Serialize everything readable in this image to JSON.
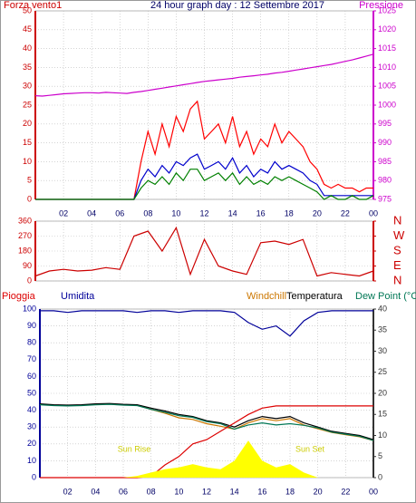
{
  "chart_data": [
    {
      "type": "line",
      "title": "24 hour graph day : 12 Settembre 2017",
      "ylabel": "Forza vento1",
      "y2label": "Pressione",
      "ytick_color": "#cc0000",
      "y2tick_color": "#cc00cc",
      "grid": true,
      "xlim": [
        0,
        24
      ],
      "ylim": [
        0,
        50
      ],
      "y2lim": [
        975,
        1025
      ],
      "xticks": [
        {
          "value": 2,
          "label": "02"
        },
        {
          "value": 4,
          "label": "04"
        },
        {
          "value": 6,
          "label": "06"
        },
        {
          "value": 8,
          "label": "08"
        },
        10,
        12,
        14,
        16,
        18,
        20,
        22,
        {
          "value": 24,
          "label": "00"
        }
      ],
      "yticks": [
        0,
        5,
        10,
        15,
        20,
        25,
        30,
        35,
        40,
        45,
        50
      ],
      "y2ticks": [
        975,
        980,
        985,
        990,
        995,
        1000,
        1005,
        1010,
        1015,
        1020,
        1025
      ],
      "x": [
        0,
        0.5,
        1,
        1.5,
        2,
        2.5,
        3,
        3.5,
        4,
        4.5,
        5,
        5.5,
        6,
        6.5,
        7,
        7.5,
        8,
        8.5,
        9,
        9.5,
        10,
        10.5,
        11,
        11.5,
        12,
        12.5,
        13,
        13.5,
        14,
        14.5,
        15,
        15.5,
        16,
        16.5,
        17,
        17.5,
        18,
        18.5,
        19,
        19.5,
        20,
        20.5,
        21,
        21.5,
        22,
        22.5,
        23,
        23.5,
        24
      ],
      "series": [
        {
          "color": "#ff0000",
          "values": [
            0,
            0,
            0,
            0,
            0,
            0,
            0,
            0,
            0,
            0,
            0,
            0,
            0,
            0,
            0,
            10,
            18,
            12,
            20,
            14,
            22,
            18,
            24,
            26,
            16,
            18,
            20,
            15,
            22,
            14,
            18,
            12,
            16,
            14,
            20,
            15,
            18,
            16,
            14,
            10,
            8,
            4,
            3,
            4,
            3,
            3,
            2,
            3,
            3
          ]
        },
        {
          "color": "#0000cc",
          "values": [
            0,
            0,
            0,
            0,
            0,
            0,
            0,
            0,
            0,
            0,
            0,
            0,
            0,
            0,
            0,
            5,
            8,
            6,
            9,
            7,
            10,
            9,
            11,
            12,
            8,
            9,
            10,
            8,
            11,
            7,
            9,
            6,
            8,
            7,
            10,
            8,
            9,
            8,
            7,
            5,
            4,
            1,
            1,
            1,
            1,
            1,
            1,
            1,
            1
          ]
        },
        {
          "color": "#008000",
          "values": [
            0,
            0,
            0,
            0,
            0,
            0,
            0,
            0,
            0,
            0,
            0,
            0,
            0,
            0,
            0,
            3,
            5,
            4,
            6,
            4,
            7,
            5,
            8,
            8,
            5,
            6,
            7,
            5,
            7,
            4,
            6,
            4,
            5,
            4,
            6,
            5,
            6,
            5,
            4,
            3,
            2,
            0,
            1,
            0,
            0,
            1,
            0,
            0,
            1
          ]
        },
        {
          "color": "#cc00cc",
          "axis": "y2",
          "values": [
            1002.5,
            1002.4,
            1002.6,
            1002.8,
            1003.0,
            1003.1,
            1003.2,
            1003.3,
            1003.3,
            1003.2,
            1003.4,
            1003.3,
            1003.2,
            1003.1,
            1003.4,
            1003.6,
            1003.9,
            1004.2,
            1004.5,
            1004.8,
            1005.1,
            1005.4,
            1005.7,
            1006.0,
            1006.3,
            1006.5,
            1006.7,
            1006.9,
            1007.1,
            1007.4,
            1007.6,
            1007.8,
            1008.0,
            1008.2,
            1008.5,
            1008.7,
            1009.0,
            1009.3,
            1009.6,
            1009.9,
            1010.2,
            1010.5,
            1010.8,
            1011.2,
            1011.6,
            1012.0,
            1012.5,
            1013.0,
            1013.5
          ]
        }
      ]
    },
    {
      "type": "line",
      "ytick_color": "#cc0000",
      "y2tick_color": "#cc0000",
      "grid": true,
      "xlim": [
        0,
        24
      ],
      "ylim": [
        0,
        360
      ],
      "y2lim": [
        0,
        360
      ],
      "xticks": [
        {
          "value": 2,
          "label": "02"
        },
        {
          "value": 4,
          "label": "04"
        },
        {
          "value": 6,
          "label": "06"
        },
        {
          "value": 8,
          "label": "08"
        },
        10,
        12,
        14,
        16,
        18,
        20,
        22,
        {
          "value": 24,
          "label": "00"
        }
      ],
      "yticks": [
        0,
        90,
        180,
        270,
        360
      ],
      "y2ticks": [
        {
          "value": 0,
          "label": "N"
        },
        {
          "value": 90,
          "label": "E"
        },
        {
          "value": 180,
          "label": "S"
        },
        {
          "value": 270,
          "label": "W"
        },
        {
          "value": 360,
          "label": "N"
        }
      ],
      "x": [
        0,
        1,
        2,
        3,
        4,
        5,
        6,
        7,
        8,
        9,
        10,
        11,
        12,
        13,
        14,
        15,
        16,
        17,
        18,
        19,
        20,
        21,
        22,
        23,
        24
      ],
      "series": [
        {
          "color": "#cc0000",
          "values": [
            30,
            60,
            70,
            60,
            65,
            80,
            70,
            270,
            300,
            180,
            320,
            40,
            250,
            90,
            60,
            40,
            230,
            240,
            220,
            250,
            30,
            50,
            40,
            30,
            60
          ]
        }
      ]
    },
    {
      "type": "line",
      "ytick_color": "#000099",
      "y2tick_color": "#333333",
      "grid": true,
      "annotations": [
        "Sun Rise",
        "Sun Set"
      ],
      "xlim": [
        0,
        24
      ],
      "ylim": [
        0,
        100
      ],
      "y2lim": [
        0,
        40
      ],
      "xticks": [
        {
          "value": 2,
          "label": "02"
        },
        {
          "value": 4,
          "label": "04"
        },
        {
          "value": 6,
          "label": "06"
        },
        {
          "value": 8,
          "label": "08"
        },
        10,
        12,
        14,
        16,
        18,
        20,
        22,
        {
          "value": 24,
          "label": "00"
        }
      ],
      "yticks": [
        0,
        10,
        20,
        30,
        40,
        50,
        60,
        70,
        80,
        90,
        100
      ],
      "y2ticks": [
        0,
        5,
        10,
        15,
        20,
        25,
        30,
        35,
        40
      ],
      "x": [
        0,
        1,
        2,
        3,
        4,
        5,
        6,
        7,
        8,
        9,
        10,
        11,
        12,
        13,
        14,
        15,
        16,
        17,
        18,
        19,
        20,
        21,
        22,
        23,
        24
      ],
      "series": [
        {
          "name": "Umidita",
          "color": "#000099",
          "values": [
            99,
            99,
            98,
            99,
            99,
            99,
            99,
            98,
            99,
            99,
            98,
            99,
            99,
            99,
            98,
            92,
            88,
            90,
            84,
            93,
            98,
            99,
            99,
            99,
            99
          ]
        },
        {
          "name": "Windchill",
          "color": "#cc7700",
          "axis": "y2",
          "values": [
            17.4,
            17.2,
            17.1,
            17.2,
            17.4,
            17.5,
            17.3,
            17.2,
            16.2,
            15.3,
            14.2,
            13.8,
            12.8,
            12.2,
            11.5,
            13.0,
            14.0,
            13.5,
            14.0,
            12.5,
            11.6,
            10.7,
            10.2,
            9.7,
            8.8
          ]
        },
        {
          "name": "Temperatura",
          "color": "#000000",
          "axis": "y2",
          "values": [
            17.5,
            17.3,
            17.2,
            17.3,
            17.5,
            17.6,
            17.4,
            17.3,
            16.5,
            15.8,
            15.0,
            14.5,
            13.5,
            13.0,
            12.0,
            13.5,
            14.5,
            14.0,
            14.5,
            13.0,
            12.0,
            11.0,
            10.5,
            10.0,
            9.0
          ]
        },
        {
          "name": "Dew Point (°C",
          "color": "#007755",
          "axis": "y2",
          "values": [
            17.3,
            17.1,
            17.0,
            17.1,
            17.3,
            17.4,
            17.2,
            17.1,
            16.2,
            15.5,
            14.7,
            14.3,
            13.3,
            12.8,
            11.5,
            12.5,
            13.0,
            12.5,
            12.8,
            12.4,
            11.8,
            10.8,
            10.3,
            9.8,
            8.8
          ]
        },
        {
          "name": "Pioggia",
          "color": "#dd0000",
          "axis": "y2",
          "values": [
            0,
            0,
            0,
            0,
            0,
            0,
            0,
            0,
            0.3,
            3,
            5,
            8,
            9,
            11,
            13,
            15,
            16.5,
            17,
            17,
            17,
            17,
            17,
            17,
            17,
            17
          ]
        },
        {
          "color": "#ffff00",
          "fill": true,
          "values": [
            0,
            0,
            0,
            0,
            0,
            0,
            0,
            1,
            3,
            5,
            6,
            8,
            6,
            5,
            10,
            22,
            10,
            6,
            8,
            3,
            0,
            0,
            0,
            0,
            0
          ]
        }
      ]
    }
  ]
}
